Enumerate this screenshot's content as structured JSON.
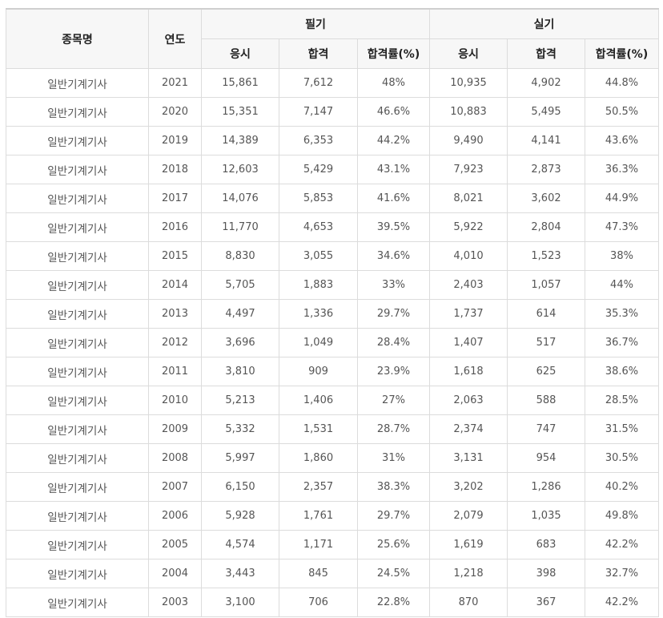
{
  "header": {
    "item_name": "종목명",
    "year": "연도",
    "written": "필기",
    "practical": "실기",
    "applicants": "응시",
    "passed": "합격",
    "pass_rate": "합격률(%)"
  },
  "rows": [
    {
      "name": "일반기계기사",
      "year": "2021",
      "w_apply": "15,861",
      "w_pass": "7,612",
      "w_rate": "48%",
      "p_apply": "10,935",
      "p_pass": "4,902",
      "p_rate": "44.8%"
    },
    {
      "name": "일반기계기사",
      "year": "2020",
      "w_apply": "15,351",
      "w_pass": "7,147",
      "w_rate": "46.6%",
      "p_apply": "10,883",
      "p_pass": "5,495",
      "p_rate": "50.5%"
    },
    {
      "name": "일반기계기사",
      "year": "2019",
      "w_apply": "14,389",
      "w_pass": "6,353",
      "w_rate": "44.2%",
      "p_apply": "9,490",
      "p_pass": "4,141",
      "p_rate": "43.6%"
    },
    {
      "name": "일반기계기사",
      "year": "2018",
      "w_apply": "12,603",
      "w_pass": "5,429",
      "w_rate": "43.1%",
      "p_apply": "7,923",
      "p_pass": "2,873",
      "p_rate": "36.3%"
    },
    {
      "name": "일반기계기사",
      "year": "2017",
      "w_apply": "14,076",
      "w_pass": "5,853",
      "w_rate": "41.6%",
      "p_apply": "8,021",
      "p_pass": "3,602",
      "p_rate": "44.9%"
    },
    {
      "name": "일반기계기사",
      "year": "2016",
      "w_apply": "11,770",
      "w_pass": "4,653",
      "w_rate": "39.5%",
      "p_apply": "5,922",
      "p_pass": "2,804",
      "p_rate": "47.3%"
    },
    {
      "name": "일반기계기사",
      "year": "2015",
      "w_apply": "8,830",
      "w_pass": "3,055",
      "w_rate": "34.6%",
      "p_apply": "4,010",
      "p_pass": "1,523",
      "p_rate": "38%"
    },
    {
      "name": "일반기계기사",
      "year": "2014",
      "w_apply": "5,705",
      "w_pass": "1,883",
      "w_rate": "33%",
      "p_apply": "2,403",
      "p_pass": "1,057",
      "p_rate": "44%"
    },
    {
      "name": "일반기계기사",
      "year": "2013",
      "w_apply": "4,497",
      "w_pass": "1,336",
      "w_rate": "29.7%",
      "p_apply": "1,737",
      "p_pass": "614",
      "p_rate": "35.3%"
    },
    {
      "name": "일반기계기사",
      "year": "2012",
      "w_apply": "3,696",
      "w_pass": "1,049",
      "w_rate": "28.4%",
      "p_apply": "1,407",
      "p_pass": "517",
      "p_rate": "36.7%"
    },
    {
      "name": "일반기계기사",
      "year": "2011",
      "w_apply": "3,810",
      "w_pass": "909",
      "w_rate": "23.9%",
      "p_apply": "1,618",
      "p_pass": "625",
      "p_rate": "38.6%"
    },
    {
      "name": "일반기계기사",
      "year": "2010",
      "w_apply": "5,213",
      "w_pass": "1,406",
      "w_rate": "27%",
      "p_apply": "2,063",
      "p_pass": "588",
      "p_rate": "28.5%"
    },
    {
      "name": "일반기계기사",
      "year": "2009",
      "w_apply": "5,332",
      "w_pass": "1,531",
      "w_rate": "28.7%",
      "p_apply": "2,374",
      "p_pass": "747",
      "p_rate": "31.5%"
    },
    {
      "name": "일반기계기사",
      "year": "2008",
      "w_apply": "5,997",
      "w_pass": "1,860",
      "w_rate": "31%",
      "p_apply": "3,131",
      "p_pass": "954",
      "p_rate": "30.5%"
    },
    {
      "name": "일반기계기사",
      "year": "2007",
      "w_apply": "6,150",
      "w_pass": "2,357",
      "w_rate": "38.3%",
      "p_apply": "3,202",
      "p_pass": "1,286",
      "p_rate": "40.2%"
    },
    {
      "name": "일반기계기사",
      "year": "2006",
      "w_apply": "5,928",
      "w_pass": "1,761",
      "w_rate": "29.7%",
      "p_apply": "2,079",
      "p_pass": "1,035",
      "p_rate": "49.8%"
    },
    {
      "name": "일반기계기사",
      "year": "2005",
      "w_apply": "4,574",
      "w_pass": "1,171",
      "w_rate": "25.6%",
      "p_apply": "1,619",
      "p_pass": "683",
      "p_rate": "42.2%"
    },
    {
      "name": "일반기계기사",
      "year": "2004",
      "w_apply": "3,443",
      "w_pass": "845",
      "w_rate": "24.5%",
      "p_apply": "1,218",
      "p_pass": "398",
      "p_rate": "32.7%"
    },
    {
      "name": "일반기계기사",
      "year": "2003",
      "w_apply": "3,100",
      "w_pass": "706",
      "w_rate": "22.8%",
      "p_apply": "870",
      "p_pass": "367",
      "p_rate": "42.2%"
    }
  ]
}
